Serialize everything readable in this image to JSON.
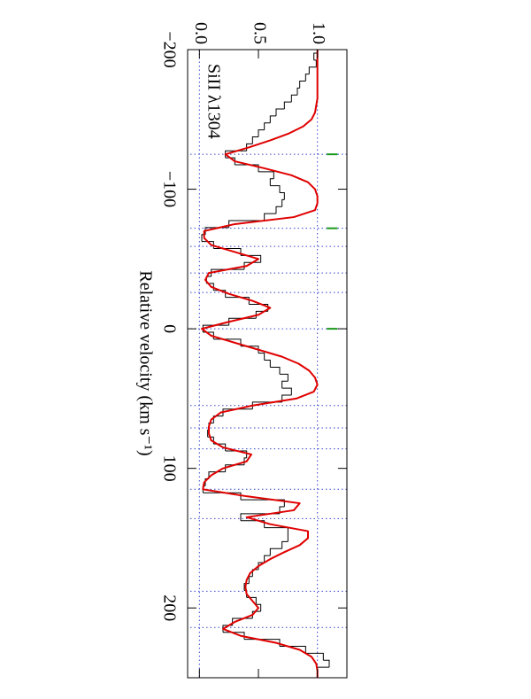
{
  "chart_data": {
    "type": "spectrum",
    "title": "SiII λ1304",
    "xlabel": "Relative velocity (km s⁻¹)",
    "xlim": [
      -200,
      250
    ],
    "ylim": [
      -0.1,
      1.25
    ],
    "xticks": [
      {
        "value": -200,
        "label": "−200"
      },
      {
        "value": -100,
        "label": "−100"
      },
      {
        "value": 0,
        "label": "0"
      },
      100,
      200
    ],
    "yticks": [
      {
        "value": 0,
        "label": "0.0"
      },
      {
        "value": 0.5,
        "label": "0.5"
      },
      {
        "value": 1,
        "label": "1.0"
      }
    ],
    "hlines": [
      0,
      1
    ],
    "vlines": [
      -125,
      -72,
      -59,
      -40,
      -26,
      0,
      55,
      71,
      86,
      115,
      136,
      188,
      214
    ],
    "components": [
      -125,
      -72,
      0
    ],
    "x": [
      -200,
      -195,
      -190,
      -185,
      -180,
      -175,
      -170,
      -165,
      -160,
      -155,
      -150,
      -145,
      -140,
      -135,
      -130,
      -125,
      -120,
      -115,
      -110,
      -105,
      -100,
      -95,
      -90,
      -85,
      -80,
      -75,
      -70,
      -65,
      -60,
      -55,
      -50,
      -45,
      -40,
      -35,
      -30,
      -25,
      -20,
      -15,
      -10,
      -5,
      0,
      5,
      10,
      15,
      20,
      25,
      30,
      35,
      40,
      45,
      50,
      55,
      60,
      65,
      70,
      75,
      80,
      85,
      90,
      95,
      100,
      105,
      110,
      115,
      120,
      125,
      130,
      135,
      140,
      145,
      150,
      155,
      160,
      165,
      170,
      175,
      180,
      185,
      190,
      195,
      200,
      205,
      210,
      215,
      220,
      225,
      230,
      235,
      240,
      245,
      250
    ],
    "series": [
      {
        "kind": "histogram",
        "color": "#000000",
        "values": [
          1.0,
          0.97,
          0.99,
          0.93,
          0.9,
          0.85,
          0.83,
          0.78,
          0.72,
          0.65,
          0.6,
          0.55,
          0.5,
          0.45,
          0.4,
          0.22,
          0.3,
          0.5,
          0.63,
          0.6,
          0.68,
          0.72,
          0.7,
          0.65,
          0.55,
          0.25,
          0.05,
          0.02,
          0.12,
          0.35,
          0.52,
          0.38,
          0.1,
          0.06,
          0.12,
          0.22,
          0.42,
          0.58,
          0.48,
          0.25,
          0.03,
          0.12,
          0.35,
          0.5,
          0.55,
          0.6,
          0.68,
          0.75,
          0.7,
          0.78,
          0.7,
          0.45,
          0.2,
          0.12,
          0.08,
          0.07,
          0.12,
          0.22,
          0.4,
          0.38,
          0.22,
          0.08,
          0.05,
          0.03,
          0.35,
          0.72,
          0.68,
          0.35,
          0.55,
          0.75,
          0.75,
          0.7,
          0.6,
          0.55,
          0.5,
          0.45,
          0.42,
          0.38,
          0.4,
          0.48,
          0.52,
          0.45,
          0.28,
          0.2,
          0.38,
          0.68,
          0.9,
          1.05,
          1.1,
          1.0,
          1.0
        ]
      },
      {
        "kind": "line",
        "color": "#e00000",
        "values": [
          1.0,
          1.0,
          1.0,
          1.0,
          1.0,
          1.0,
          1.0,
          1.0,
          0.99,
          0.98,
          0.95,
          0.88,
          0.76,
          0.6,
          0.42,
          0.22,
          0.3,
          0.55,
          0.78,
          0.92,
          0.98,
          1.0,
          1.0,
          0.98,
          0.8,
          0.3,
          0.04,
          0.04,
          0.1,
          0.3,
          0.5,
          0.4,
          0.08,
          0.05,
          0.1,
          0.25,
          0.45,
          0.6,
          0.5,
          0.25,
          0.02,
          0.1,
          0.3,
          0.5,
          0.7,
          0.84,
          0.93,
          0.98,
          1.0,
          0.97,
          0.82,
          0.45,
          0.18,
          0.1,
          0.08,
          0.08,
          0.1,
          0.2,
          0.44,
          0.4,
          0.2,
          0.1,
          0.04,
          0.03,
          0.4,
          0.85,
          0.8,
          0.4,
          0.6,
          0.92,
          0.92,
          0.85,
          0.72,
          0.6,
          0.5,
          0.43,
          0.4,
          0.39,
          0.4,
          0.45,
          0.5,
          0.45,
          0.3,
          0.2,
          0.35,
          0.65,
          0.85,
          0.95,
          0.99,
          1.0,
          1.0
        ]
      }
    ]
  }
}
